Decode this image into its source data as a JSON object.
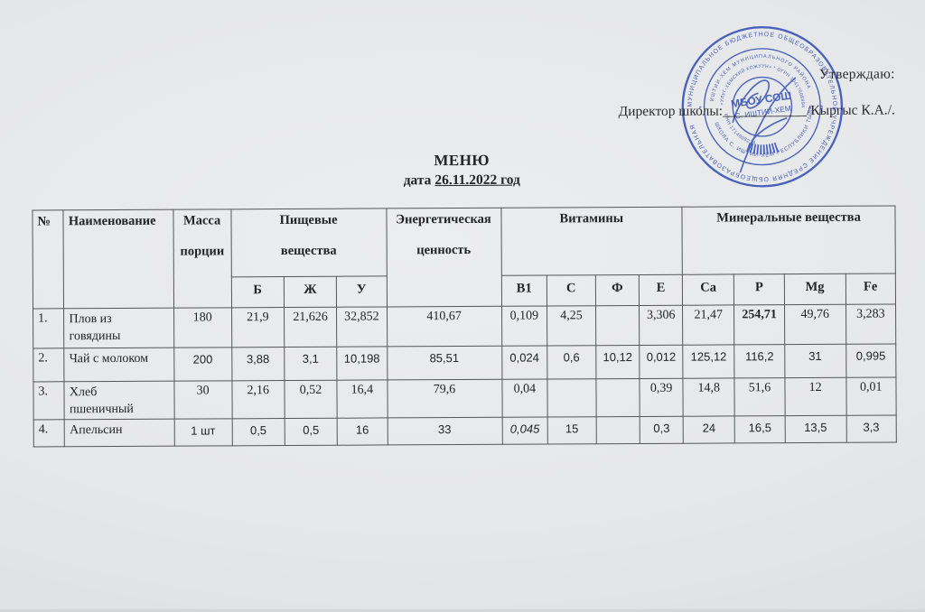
{
  "approval": {
    "approve_label": "Утверждаю:",
    "director_prefix": "Директор школы:",
    "signature_line": "____________",
    "director_name": "/Кыргыс К.А./."
  },
  "title": {
    "line1": "МЕНЮ",
    "line2_prefix": "дата ",
    "line2_underlined": "26.11.2022 год"
  },
  "stamp": {
    "ink_color": "#3a55b8",
    "ring_outer": "МУНИЦИПАЛЬНОЕ БЮДЖЕТНОЕ ОБЩЕОБРАЗОВАТЕЛЬНОЕ УЧРЕЖДЕНИЕ СРЕДНЯЯ ОБЩЕОБРАЗОВАТЕЛЬНАЯ",
    "ring_middle_top": "ИШТИИ-ХЕМ МУНИЦИПАЛЬНОГО РАЙОНА",
    "ring_inner_top": "«УЛУГ-ХЕМСКИЙ КОЖУУН» * ОГРН 1041700889470 *",
    "ring_middle_bottom": "ШКОЛА С. ИШТИИ-ХЕМ РЕСПУБЛИКИ ТЫВА",
    "ring_inner_bottom": "ИНН 1714005214",
    "star_left": "*",
    "star_right": "*",
    "center_line1": "МБОУ СОШ",
    "center_line2": "С. ИШТИИ-ХЕМ"
  },
  "table": {
    "head": {
      "num": "№",
      "name": "Наименование",
      "mass1": "Масса",
      "mass2": "порции",
      "food1": "Пищевые",
      "food2": "вещества",
      "energy1": "Энергетическая",
      "energy2": "ценность",
      "vitamins": "Витамины",
      "minerals": "Минеральные вещества",
      "sub": [
        "Б",
        "Ж",
        "У",
        "В1",
        "С",
        "Ф",
        "Е",
        "Ca",
        "P",
        "Mg",
        "Fe"
      ]
    },
    "rows": [
      {
        "num": "1.",
        "name_lines": [
          "Плов из",
          "говядины"
        ],
        "mass": "180",
        "font": "serif",
        "cells": [
          "21,9",
          "21,626",
          "32,852",
          "410,67",
          "0,109",
          "4,25",
          "",
          "3,306",
          "21,47",
          "254,71",
          "49,76",
          "3,283"
        ],
        "bold_cells": [
          9
        ],
        "italic_cells": []
      },
      {
        "num": "2.",
        "name_lines": [
          "Чай с молоком"
        ],
        "mass": "200",
        "font": "sans",
        "cells": [
          "3,88",
          "3,1",
          "10,198",
          "85,51",
          "0,024",
          "0,6",
          "10,12",
          "0,012",
          "125,12",
          "116,2",
          "31",
          "0,995"
        ],
        "bold_cells": [],
        "italic_cells": []
      },
      {
        "num": "3.",
        "name_lines": [
          "Хлеб",
          "пшеничный"
        ],
        "mass": "30",
        "font": "serif",
        "cells": [
          "2,16",
          "0,52",
          "16,4",
          "79,6",
          "0,04",
          "",
          "",
          "0,39",
          "14,8",
          "51,6",
          "12",
          "0,01"
        ],
        "bold_cells": [],
        "italic_cells": []
      },
      {
        "num": "4.",
        "name_lines": [
          "Апельсин"
        ],
        "mass": "1 шт",
        "font": "sans",
        "cells": [
          "0,5",
          "0,5",
          "16",
          "33",
          "0,045",
          "15",
          "",
          "0,3",
          "24",
          "16,5",
          "13,5",
          "3,3"
        ],
        "bold_cells": [],
        "italic_cells": [
          4
        ]
      }
    ]
  }
}
